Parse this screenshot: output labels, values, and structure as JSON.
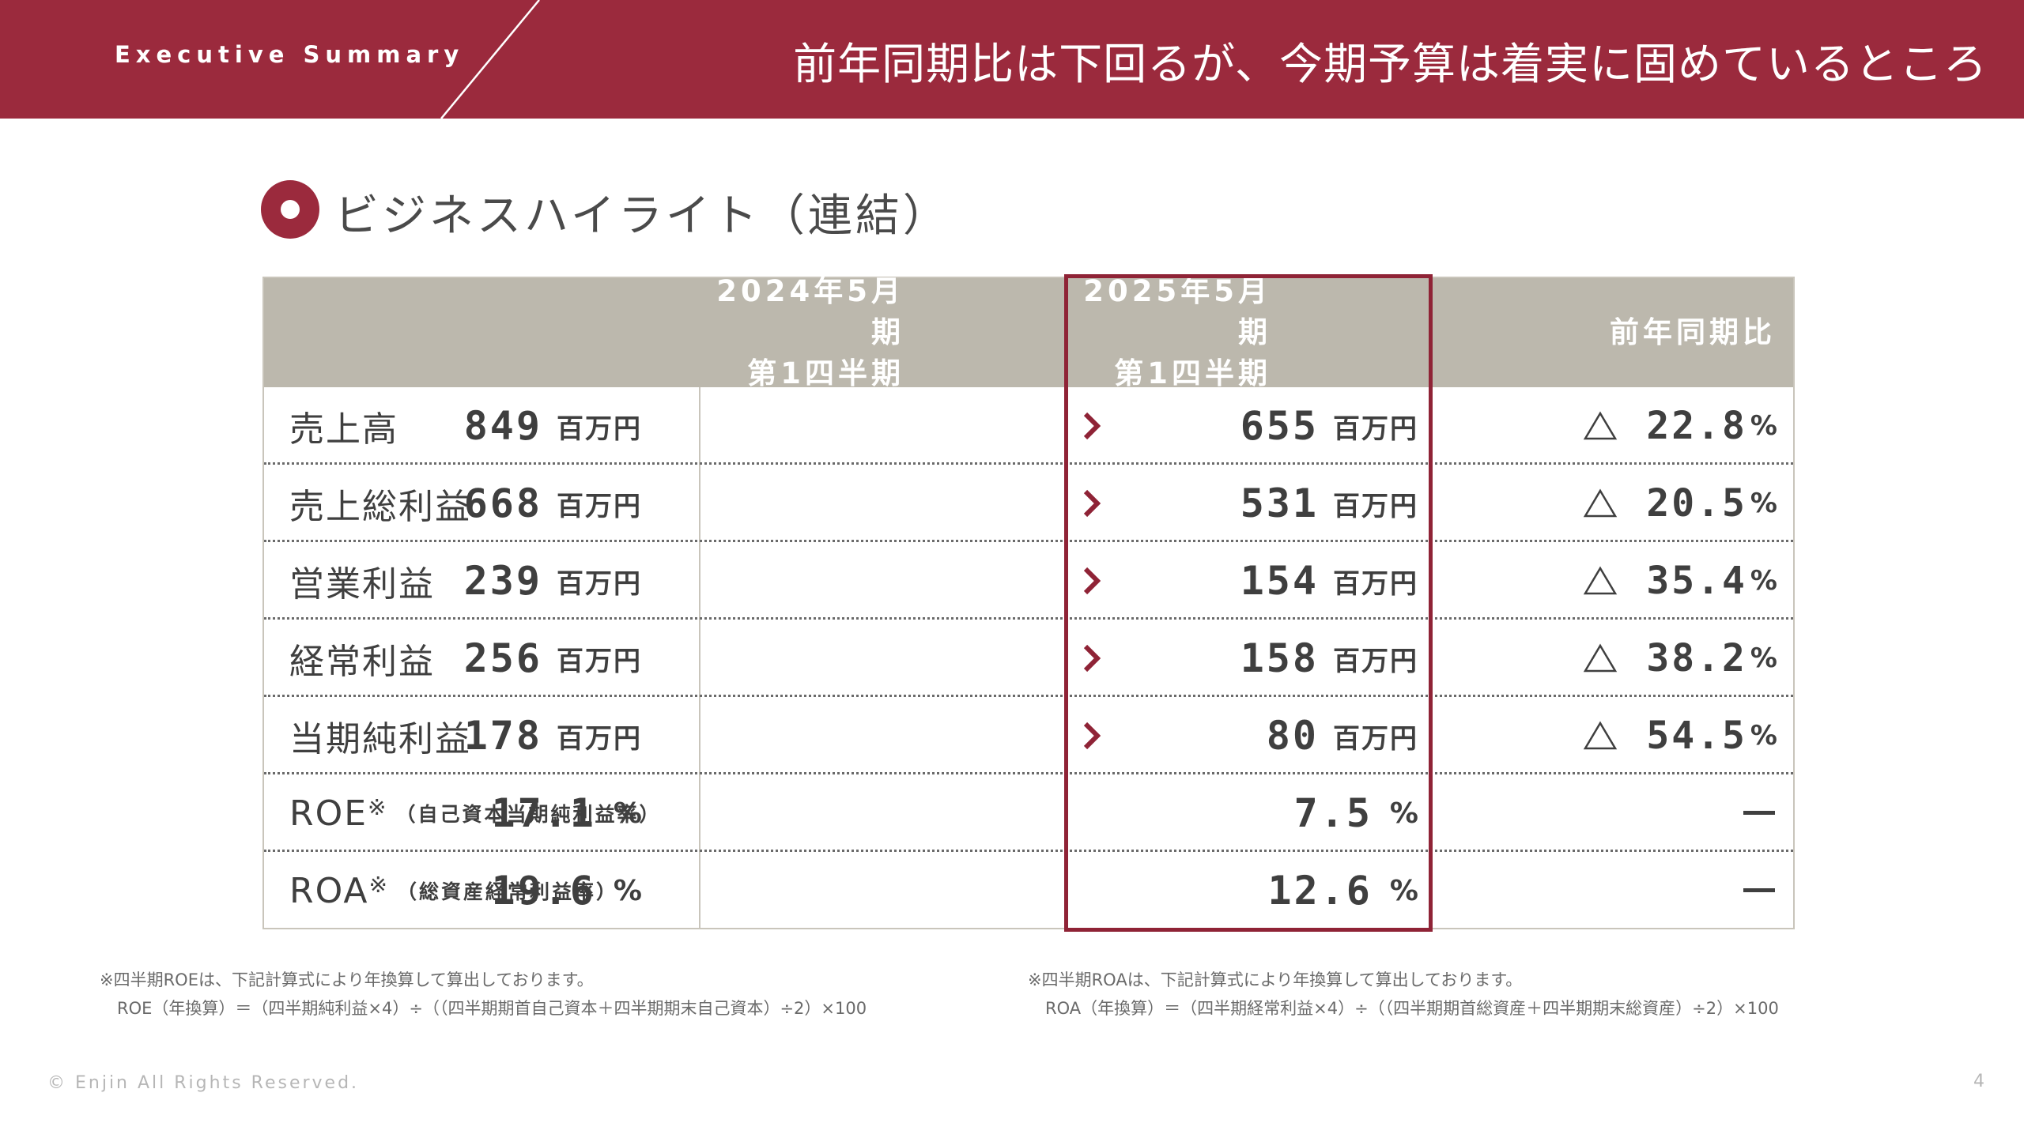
{
  "header": {
    "label": "Executive Summary",
    "title": "前年同期比は下回るが、今期予算は着実に固めているところ"
  },
  "section": {
    "title": "ビジネスハイライト（連結）"
  },
  "table": {
    "columns": [
      {
        "line1": "2024年5月期",
        "line2": "第1四半期"
      },
      {
        "line1": "2025年5月期",
        "line2": "第1四半期"
      },
      {
        "line1": "前年同期比"
      }
    ],
    "rows": [
      {
        "label": "売上高",
        "prev": "849",
        "prev_unit": "百万円",
        "curr": "655",
        "curr_unit": "百万円",
        "change": "22.8",
        "change_unit": "%"
      },
      {
        "label": "売上総利益",
        "prev": "668",
        "prev_unit": "百万円",
        "curr": "531",
        "curr_unit": "百万円",
        "change": "20.5",
        "change_unit": "%"
      },
      {
        "label": "営業利益",
        "prev": "239",
        "prev_unit": "百万円",
        "curr": "154",
        "curr_unit": "百万円",
        "change": "35.4",
        "change_unit": "%"
      },
      {
        "label": "経常利益",
        "prev": "256",
        "prev_unit": "百万円",
        "curr": "158",
        "curr_unit": "百万円",
        "change": "38.2",
        "change_unit": "%"
      },
      {
        "label": "当期純利益",
        "prev": "178",
        "prev_unit": "百万円",
        "curr": "80",
        "curr_unit": "百万円",
        "change": "54.5",
        "change_unit": "%"
      },
      {
        "label": "ROE",
        "mark": "※",
        "sub": "（自己資本当期純利益率）",
        "prev": "17.1",
        "prev_unit": "%",
        "curr": "7.5",
        "curr_unit": "%",
        "change": ""
      },
      {
        "label": "ROA",
        "mark": "※",
        "sub": "（総資産経常利益率）",
        "prev": "19.6",
        "prev_unit": "%",
        "curr": "12.6",
        "curr_unit": "%",
        "change": ""
      }
    ]
  },
  "footnotes": {
    "roe_line1": "※四半期ROEは、下記計算式により年換算して算出しております。",
    "roe_line2": "ROE（年換算）＝（四半期純利益×4）÷（（四半期期首自己資本＋四半期期末自己資本）÷2）×100",
    "roa_line1": "※四半期ROAは、下記計算式により年換算して算出しております。",
    "roa_line2": "ROA（年換算）＝（四半期経常利益×4）÷（（四半期期首総資産＋四半期期末総資産）÷2）×100"
  },
  "footer": {
    "copyright": "© Enjin All Rights Reserved.",
    "page": "4"
  },
  "colors": {
    "brand": "#9b2a3d",
    "header_band": "#bcb8ad",
    "border": "#c9c5bb"
  }
}
